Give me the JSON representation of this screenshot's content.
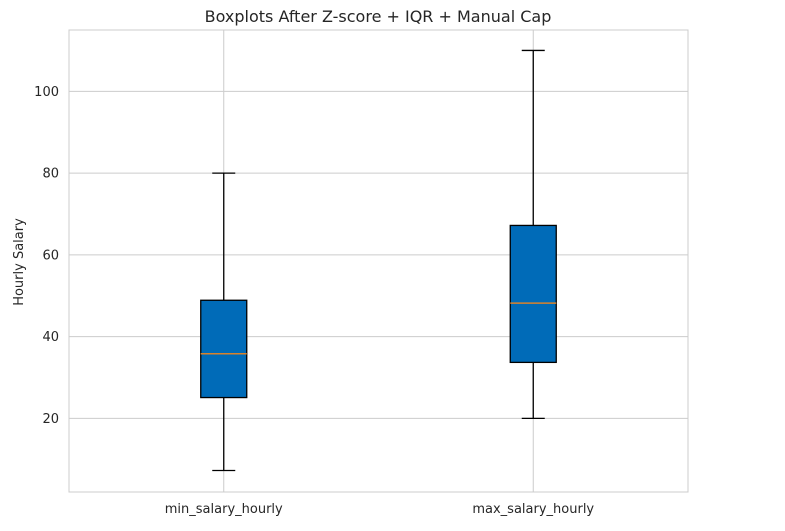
{
  "chart_data": {
    "type": "boxplot",
    "title": "Boxplots After Z-score + IQR + Manual Cap",
    "ylabel": "Hourly Salary",
    "xlabel": "",
    "ylim": [
      2,
      115
    ],
    "yticks": [
      20,
      40,
      60,
      80,
      100
    ],
    "grid": true,
    "categories": [
      "min_salary_hourly",
      "max_salary_hourly"
    ],
    "boxes": [
      {
        "category": "min_salary_hourly",
        "whisker_low": 7.25,
        "q1": 25.1,
        "median": 35.8,
        "q3": 48.9,
        "whisker_high": 80
      },
      {
        "category": "max_salary_hourly",
        "whisker_low": 20,
        "q1": 33.7,
        "median": 48.2,
        "q3": 67.2,
        "whisker_high": 110
      }
    ],
    "colors": {
      "box_fill": "#006bb8",
      "median": "#d9822b",
      "grid": "#cccccc"
    }
  }
}
